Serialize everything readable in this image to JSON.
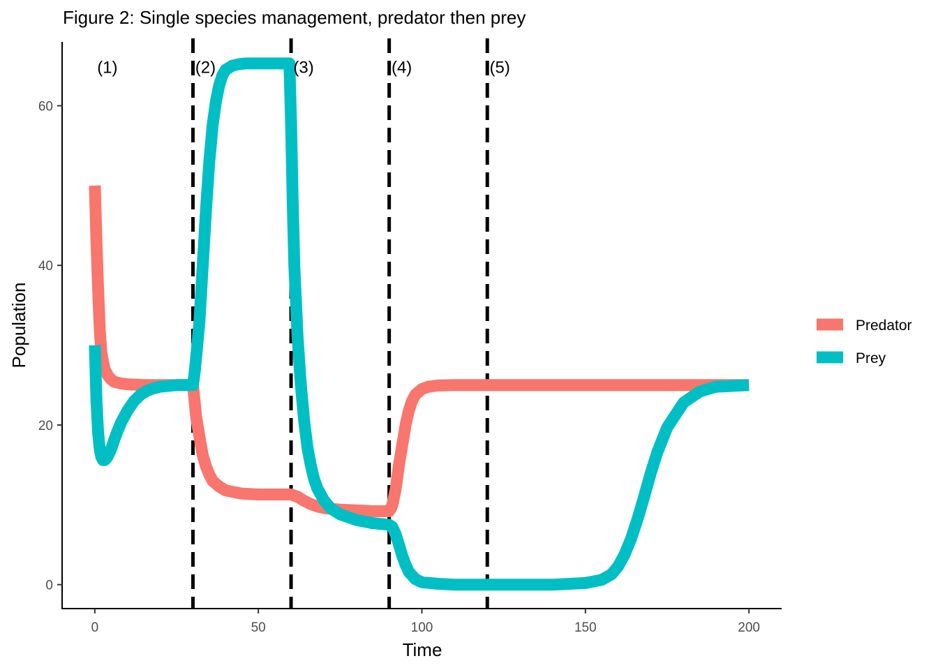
{
  "title": "Figure 2: Single species management, predator then prey",
  "chart_data": {
    "type": "line",
    "xlabel": "Time",
    "ylabel": "Population",
    "xlim": [
      -10,
      210
    ],
    "ylim": [
      -3,
      68
    ],
    "x_ticks": [
      0,
      50,
      100,
      150,
      200
    ],
    "y_ticks": [
      0,
      20,
      40,
      60
    ],
    "grid": false,
    "legend_position": "right",
    "vlines": [
      30,
      60,
      90,
      120
    ],
    "region_labels": [
      {
        "text": "(1)",
        "x": 0,
        "y": 64.8
      },
      {
        "text": "(2)",
        "x": 30,
        "y": 64.8
      },
      {
        "text": "(3)",
        "x": 60,
        "y": 64.8
      },
      {
        "text": "(4)",
        "x": 90,
        "y": 64.8
      },
      {
        "text": "(5)",
        "x": 120,
        "y": 64.8
      }
    ],
    "series": [
      {
        "name": "Predator",
        "color": "#F8766D",
        "x": [
          0,
          0.5,
          1,
          1.5,
          2,
          3,
          4,
          5,
          6,
          8,
          10,
          15,
          20,
          25,
          30,
          30.5,
          31,
          32,
          33,
          34,
          35,
          36,
          38,
          40,
          45,
          50,
          55,
          60,
          62,
          64,
          66,
          68,
          70,
          72,
          75,
          80,
          85,
          90,
          90.5,
          91,
          92,
          93,
          94,
          95,
          96,
          97,
          98,
          100,
          102,
          105,
          110,
          120,
          150,
          200
        ],
        "y": [
          50,
          43,
          37,
          32,
          29,
          27,
          26.2,
          25.7,
          25.4,
          25.2,
          25.1,
          25,
          25,
          25,
          25,
          23,
          21,
          18.5,
          16.2,
          14.8,
          13.8,
          13,
          12.3,
          11.8,
          11.4,
          11.3,
          11.3,
          11.3,
          11,
          10.5,
          10.1,
          9.8,
          9.6,
          9.5,
          9.4,
          9.3,
          9.2,
          9.2,
          9.5,
          10,
          12,
          15,
          17.5,
          20,
          21.8,
          23,
          23.8,
          24.5,
          24.8,
          24.95,
          25,
          25,
          25,
          25
        ]
      },
      {
        "name": "Prey",
        "color": "#00BFC4",
        "x": [
          0,
          0.5,
          1,
          1.5,
          2,
          2.5,
          3,
          3.5,
          4,
          5,
          6,
          7,
          8,
          10,
          12,
          14,
          16,
          18,
          20,
          25,
          30,
          30.5,
          31,
          32,
          33,
          34,
          35,
          36,
          37,
          38,
          39,
          40,
          42,
          44,
          46,
          50,
          55,
          59.5,
          60,
          60.5,
          61,
          62,
          63,
          64,
          65,
          66,
          67,
          68,
          70,
          72,
          75,
          80,
          85,
          90,
          91,
          92,
          93,
          94,
          95,
          96,
          98,
          100,
          105,
          110,
          120,
          130,
          140,
          150,
          155,
          158,
          160,
          162,
          164,
          166,
          168,
          170,
          172,
          175,
          180,
          185,
          190,
          200
        ],
        "y": [
          30,
          23,
          19,
          17,
          16,
          15.6,
          15.6,
          15.8,
          16.1,
          17,
          18.2,
          19.3,
          20.3,
          21.8,
          23,
          23.8,
          24.3,
          24.6,
          24.8,
          25,
          25,
          26.5,
          28.5,
          33,
          40,
          47,
          53,
          57.5,
          60.5,
          62.5,
          63.8,
          64.5,
          65,
          65.2,
          65.3,
          65.3,
          65.3,
          65.3,
          58,
          48,
          40,
          31,
          25,
          20.5,
          17.2,
          15,
          13.3,
          12.1,
          10.6,
          9.6,
          8.8,
          8.1,
          7.7,
          7.5,
          7.2,
          6.3,
          5,
          3.6,
          2.5,
          1.6,
          0.7,
          0.3,
          0.1,
          0,
          0,
          0,
          0,
          0.2,
          0.6,
          1.3,
          2.3,
          3.8,
          5.8,
          8.3,
          11.1,
          14,
          16.6,
          19.7,
          22.8,
          24.2,
          24.8,
          25
        ]
      }
    ]
  }
}
